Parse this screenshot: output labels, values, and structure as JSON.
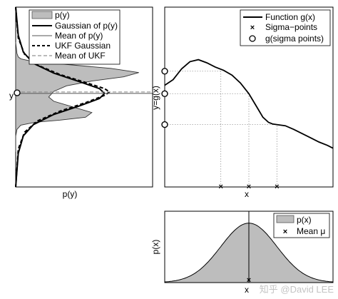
{
  "figure": {
    "watermark": "知乎 @David LEE"
  },
  "chart_data": [
    {
      "panel": "left",
      "type": "area",
      "xlabel": "p(y)",
      "ylabel": "y",
      "ylim": [
        -3.2,
        3.2
      ],
      "xlim": [
        0,
        1
      ],
      "grid": false,
      "legend_position": "top-right",
      "legend": [
        "p(y)",
        "Gaussian of p(y)",
        "Mean of p(y)",
        "UKF Gaussian",
        "Mean of UKF"
      ],
      "series": [
        {
          "name": "p(y)",
          "style": "filled-gray",
          "x": [
            0.0,
            0.01,
            0.02,
            0.04,
            0.1,
            0.35,
            0.75,
            0.97,
            0.85,
            0.6,
            0.4,
            0.3,
            0.26,
            0.3,
            0.45,
            0.6,
            0.55,
            0.35,
            0.15,
            0.04,
            0.01,
            0.0,
            0.0
          ],
          "y": [
            1.95,
            1.55,
            1.43,
            1.36,
            1.3,
            1.18,
            1.02,
            0.87,
            0.72,
            0.57,
            0.4,
            0.2,
            0.0,
            -0.15,
            -0.35,
            -0.55,
            -0.72,
            -0.82,
            -0.9,
            -1.0,
            -1.15,
            -1.4,
            -1.95
          ]
        },
        {
          "name": "Gaussian of p(y)",
          "style": "solid-thick",
          "x": [
            0.0,
            0.02,
            0.06,
            0.14,
            0.3,
            0.5,
            0.66,
            0.7,
            0.66,
            0.5,
            0.3,
            0.14,
            0.06,
            0.02,
            0.0
          ],
          "y": [
            3.2,
            2.2,
            1.6,
            1.2,
            0.85,
            0.55,
            0.3,
            0.13,
            -0.05,
            -0.32,
            -0.62,
            -0.98,
            -1.38,
            -2.0,
            -3.2
          ]
        },
        {
          "name": "UKF Gaussian",
          "style": "dashed-thick",
          "x": [
            0.0,
            0.02,
            0.07,
            0.17,
            0.35,
            0.55,
            0.7,
            0.74,
            0.7,
            0.55,
            0.35,
            0.17,
            0.07,
            0.02,
            0.0
          ],
          "y": [
            3.2,
            2.1,
            1.52,
            1.14,
            0.8,
            0.52,
            0.3,
            0.18,
            0.06,
            -0.2,
            -0.5,
            -0.85,
            -1.25,
            -1.85,
            -3.2
          ]
        }
      ],
      "mean_py": 0.13,
      "mean_ukf": 0.18,
      "projected_mean_marker": {
        "symbol": "circle",
        "y": 0.15
      }
    },
    {
      "panel": "top-right",
      "type": "line",
      "xlabel": "x",
      "ylabel": "y=g(x)",
      "xlim": [
        -3,
        3
      ],
      "ylim": [
        -3.2,
        3.2
      ],
      "grid": false,
      "dotted_guides": true,
      "legend_position": "top-right",
      "legend": [
        "Function g(x)",
        "Sigma−points",
        "g(sigma points)"
      ],
      "series": [
        {
          "name": "Function g(x)",
          "x": [
            -3.0,
            -2.7,
            -2.4,
            -2.1,
            -1.8,
            -1.5,
            -1.2,
            -0.9,
            -0.6,
            -0.3,
            0.0,
            0.3,
            0.5,
            0.7,
            0.85,
            1.0,
            1.3,
            1.6,
            1.9,
            2.2,
            2.5,
            2.8,
            3.0
          ],
          "y": [
            0.42,
            0.62,
            1.0,
            1.26,
            1.33,
            1.22,
            1.07,
            0.95,
            0.78,
            0.5,
            0.12,
            -0.38,
            -0.72,
            -0.9,
            -0.96,
            -0.98,
            -1.02,
            -1.15,
            -1.3,
            -1.45,
            -1.6,
            -1.72,
            -1.82
          ]
        }
      ],
      "sigma_points_x": [
        -1.0,
        0.0,
        1.0
      ],
      "g_sigma_points_y": [
        0.92,
        0.12,
        -0.98
      ]
    },
    {
      "panel": "bottom-right",
      "type": "area",
      "xlabel": "x",
      "ylabel": "p(x)",
      "xlim": [
        -3,
        3
      ],
      "ylim": [
        0,
        1.2
      ],
      "grid": false,
      "legend_position": "top-right",
      "legend": [
        "p(x)",
        "Mean μ"
      ],
      "series": [
        {
          "name": "p(x)",
          "style": "filled-gray",
          "gaussian": {
            "mu": 0,
            "sigma": 1
          },
          "peak": 1.0
        }
      ],
      "mean_mu": 0
    }
  ]
}
